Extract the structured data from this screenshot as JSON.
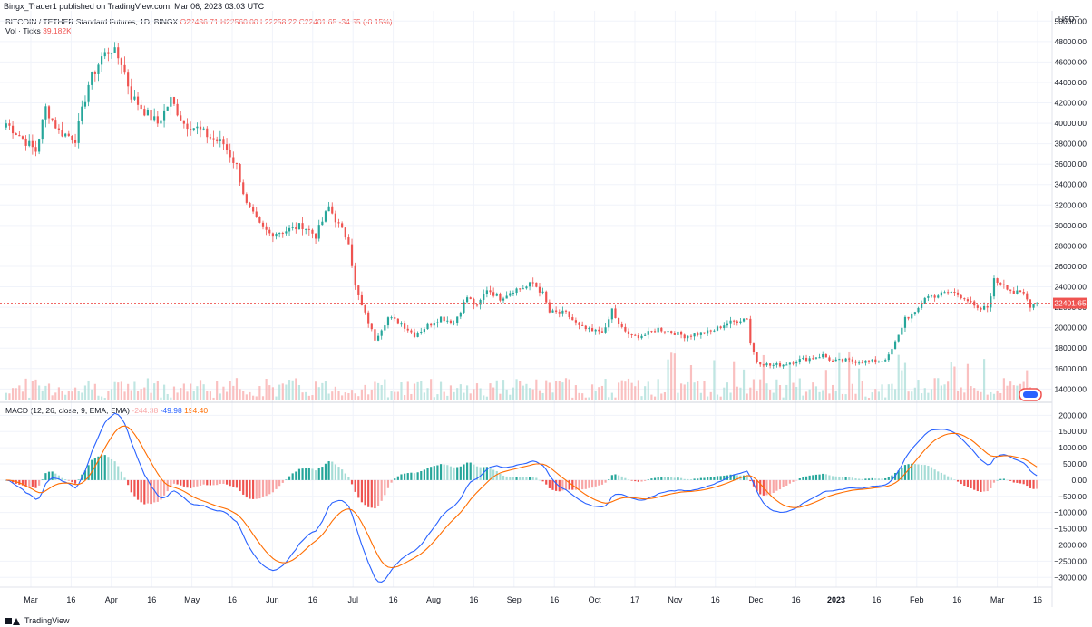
{
  "header": {
    "published_line": "Bingx_Trader1 published on TradingView.com, Mar 06, 2023 03:03 UTC"
  },
  "legend": {
    "symbol": "BITCOIN / TETHER Standard Futures, 1D, BINGX",
    "o": "O22436.71",
    "h": "H22560.00",
    "l": "L22258.22",
    "c": "C22401.65",
    "chg": "-34.55 (-0.15%)",
    "vol_label": "Vol · Ticks",
    "vol_value": "39.182K",
    "macd_label": "MACD (12, 26, close, 9, EMA, EMA)",
    "macd_hist": "-244.38",
    "macd_line": "-49.98",
    "macd_signal": "194.40"
  },
  "price_axis": {
    "unit": "USDT",
    "last_price_label": "22401.65"
  },
  "footer": {
    "brand": "TradingView"
  },
  "colors": {
    "up": "#26a69a",
    "down": "#ef5350",
    "up_light": "#a5dcd6",
    "down_light": "#f8a5a5",
    "macd": "#2962ff",
    "signal": "#ff6d00",
    "last_price_bg": "#ef5350",
    "grid": "#f0f3fa",
    "icon": "measure-flags-icon"
  },
  "chart_data": [
    {
      "type": "candlestick",
      "title": "BITCOIN / TETHER Standard Futures, 1D, BINGX",
      "ylabel": "USDT",
      "ylim": [
        12700,
        51000
      ],
      "y_ticks": [
        14000,
        16000,
        18000,
        20000,
        22000,
        24000,
        26000,
        28000,
        30000,
        32000,
        34000,
        36000,
        38000,
        40000,
        42000,
        44000,
        46000,
        48000,
        50000
      ],
      "x_ticks": [
        "Mar",
        "16",
        "Apr",
        "16",
        "May",
        "16",
        "Jun",
        "16",
        "Jul",
        "16",
        "Aug",
        "16",
        "Sep",
        "16",
        "Oct",
        "17",
        "Nov",
        "16",
        "Dec",
        "16",
        "2023",
        "16",
        "Feb",
        "16",
        "Mar",
        "16"
      ],
      "last_price": 22401.65,
      "close_anchors": [
        [
          0,
          40000
        ],
        [
          6,
          38200
        ],
        [
          9,
          37300
        ],
        [
          12,
          41500
        ],
        [
          16,
          39200
        ],
        [
          21,
          38500
        ],
        [
          25,
          43800
        ],
        [
          29,
          46500
        ],
        [
          32,
          47300
        ],
        [
          35,
          46000
        ],
        [
          38,
          42700
        ],
        [
          42,
          41200
        ],
        [
          46,
          40000
        ],
        [
          50,
          42300
        ],
        [
          54,
          40000
        ],
        [
          58,
          39500
        ],
        [
          62,
          38600
        ],
        [
          66,
          38000
        ],
        [
          70,
          35800
        ],
        [
          73,
          32000
        ],
        [
          77,
          30000
        ],
        [
          80,
          29200
        ],
        [
          85,
          29500
        ],
        [
          90,
          30000
        ],
        [
          94,
          29000
        ],
        [
          98,
          31800
        ],
        [
          101,
          30000
        ],
        [
          104,
          28500
        ],
        [
          106,
          24000
        ],
        [
          108,
          22100
        ],
        [
          110,
          20500
        ],
        [
          112,
          18900
        ],
        [
          116,
          21000
        ],
        [
          120,
          20400
        ],
        [
          124,
          19300
        ],
        [
          128,
          20200
        ],
        [
          132,
          21000
        ],
        [
          136,
          20500
        ],
        [
          140,
          23000
        ],
        [
          143,
          22000
        ],
        [
          146,
          23800
        ],
        [
          150,
          22900
        ],
        [
          154,
          23700
        ],
        [
          158,
          24000
        ],
        [
          160,
          24400
        ],
        [
          163,
          23300
        ],
        [
          165,
          21500
        ],
        [
          170,
          21400
        ],
        [
          174,
          20100
        ],
        [
          178,
          19600
        ],
        [
          182,
          19800
        ],
        [
          184,
          21800
        ],
        [
          186,
          20200
        ],
        [
          190,
          19100
        ],
        [
          194,
          19300
        ],
        [
          198,
          19900
        ],
        [
          202,
          19600
        ],
        [
          206,
          19200
        ],
        [
          210,
          19400
        ],
        [
          214,
          19600
        ],
        [
          218,
          20300
        ],
        [
          222,
          20700
        ],
        [
          225,
          21000
        ],
        [
          226,
          18500
        ],
        [
          228,
          16700
        ],
        [
          232,
          16300
        ],
        [
          236,
          16400
        ],
        [
          240,
          16800
        ],
        [
          244,
          17000
        ],
        [
          248,
          17300
        ],
        [
          251,
          16700
        ],
        [
          255,
          16800
        ],
        [
          259,
          16700
        ],
        [
          263,
          16700
        ],
        [
          266,
          16800
        ],
        [
          268,
          17200
        ],
        [
          271,
          19200
        ],
        [
          273,
          21000
        ],
        [
          276,
          21300
        ],
        [
          279,
          23000
        ],
        [
          283,
          23200
        ],
        [
          287,
          23500
        ],
        [
          291,
          23000
        ],
        [
          295,
          21700
        ],
        [
          298,
          22000
        ],
        [
          300,
          24600
        ],
        [
          303,
          24300
        ],
        [
          306,
          23400
        ],
        [
          309,
          23300
        ],
        [
          311,
          22200
        ],
        [
          313,
          22400
        ]
      ],
      "volume_note": "Vol · Ticks histogram, last 39.182K"
    },
    {
      "type": "macd",
      "title": "MACD (12, 26, close, 9, EMA, EMA)",
      "ylim": [
        -3300,
        2400
      ],
      "y_ticks": [
        -3000,
        -2500,
        -2000,
        -1500,
        -1000,
        -500,
        0,
        500,
        1000,
        1500,
        2000
      ],
      "series": [
        {
          "name": "Histogram",
          "last": -244.38
        },
        {
          "name": "MACD",
          "last": -49.98
        },
        {
          "name": "Signal",
          "last": 194.4
        }
      ]
    }
  ]
}
